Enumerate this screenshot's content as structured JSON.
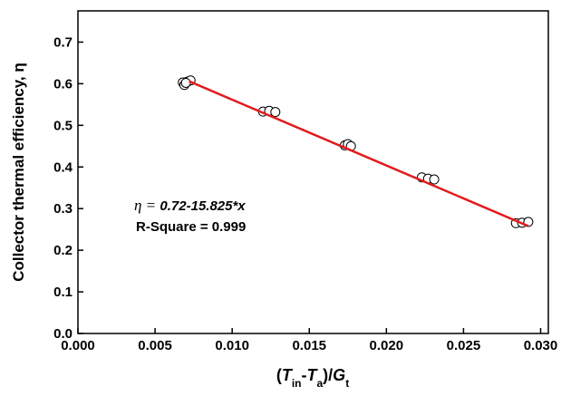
{
  "chart_data": {
    "type": "scatter",
    "x_label_parts": [
      "(",
      "T",
      "in",
      "-",
      "T",
      "a",
      ")/",
      "G",
      "t"
    ],
    "y_label": "Collector thermal efficiency, η",
    "annotation_prefix": "η = ",
    "annotation_equation": "0.72-15.825*x",
    "annotation_r2": "R-Square = 0.999",
    "x": [
      0.0068,
      0.0069,
      0.0071,
      0.0073,
      0.007,
      0.012,
      0.0124,
      0.0128,
      0.0173,
      0.0175,
      0.0177,
      0.0223,
      0.0227,
      0.0231,
      0.0284,
      0.0288,
      0.0292
    ],
    "values": [
      0.603,
      0.597,
      0.605,
      0.608,
      0.602,
      0.533,
      0.535,
      0.532,
      0.452,
      0.455,
      0.45,
      0.375,
      0.372,
      0.37,
      0.265,
      0.266,
      0.268
    ],
    "marker_color": "#000000",
    "fit_line": {
      "x": [
        0.0072,
        0.0292
      ],
      "values": [
        0.606,
        0.258
      ],
      "color": "#e31a1c"
    },
    "xlim": [
      0,
      0.0305
    ],
    "ylim": [
      0,
      0.775
    ],
    "xticks": [
      {
        "value": 0,
        "label": "0.000"
      },
      {
        "value": 0.005,
        "label": "0.005"
      },
      {
        "value": 0.01,
        "label": "0.010"
      },
      {
        "value": 0.015,
        "label": "0.015"
      },
      {
        "value": 0.02,
        "label": "0.020"
      },
      {
        "value": 0.025,
        "label": "0.025"
      },
      {
        "value": 0.03,
        "label": "0.030"
      }
    ],
    "yticks": [
      {
        "value": 0,
        "label": "0.0"
      },
      {
        "value": 0.1,
        "label": "0.1"
      },
      {
        "value": 0.2,
        "label": "0.2"
      },
      {
        "value": 0.3,
        "label": "0.3"
      },
      {
        "value": 0.4,
        "label": "0.4"
      },
      {
        "value": 0.5,
        "label": "0.5"
      },
      {
        "value": 0.6,
        "label": "0.6"
      },
      {
        "value": 0.7,
        "label": "0.7"
      }
    ]
  }
}
